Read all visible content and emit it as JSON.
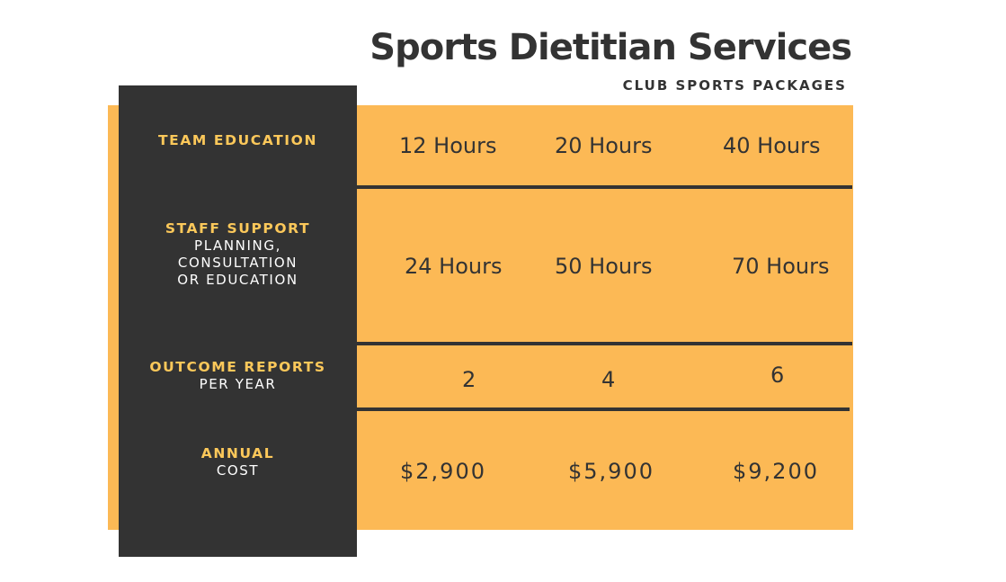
{
  "title": "Sports Dietitian Services",
  "subtitle": "CLUB SPORTS PACKAGES",
  "rows": [
    {
      "label_highlight": "TEAM EDUCATION",
      "label_lines": [],
      "values": [
        "12 Hours",
        "20 Hours",
        "40 Hours"
      ]
    },
    {
      "label_highlight": "STAFF SUPPORT",
      "label_lines": [
        "PLANNING,",
        "CONSULTATION",
        "OR EDUCATION"
      ],
      "values": [
        "24 Hours",
        "50 Hours",
        "70 Hours"
      ]
    },
    {
      "label_highlight": "OUTCOME REPORTS",
      "label_lines": [
        "PER YEAR"
      ],
      "values": [
        "2",
        "4",
        "6"
      ]
    },
    {
      "label_highlight": "ANNUAL",
      "label_lines": [
        "COST"
      ],
      "values": [
        "$2,900",
        "$5,900",
        "$9,200"
      ]
    }
  ],
  "colors": {
    "accent": "#fcb955",
    "dark": "#333333",
    "label_highlight": "#fcc85a"
  }
}
